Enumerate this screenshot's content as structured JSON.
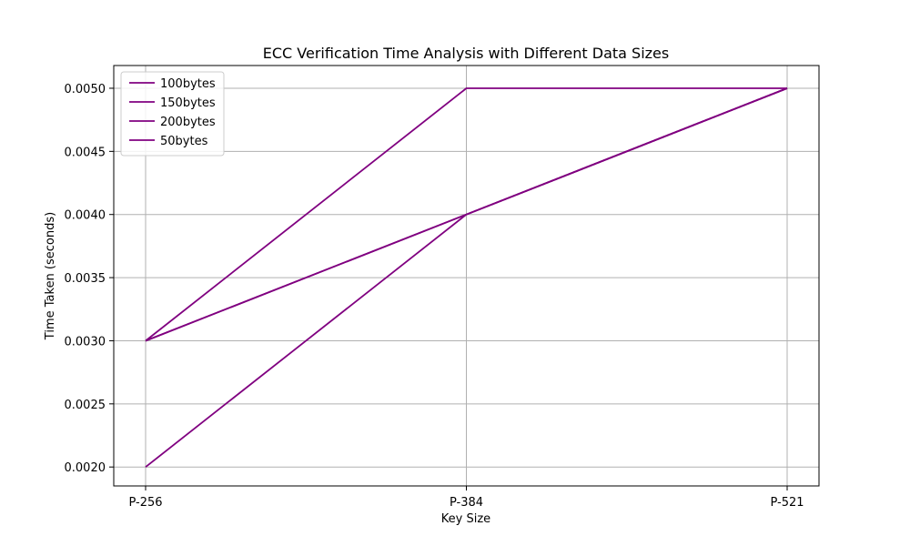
{
  "chart_data": {
    "type": "line",
    "title": "ECC Verification Time Analysis with Different Data Sizes",
    "xlabel": "Key Size",
    "ylabel": "Time Taken (seconds)",
    "categories": [
      "P-256",
      "P-384",
      "P-521"
    ],
    "series": [
      {
        "name": "100bytes",
        "values": [
          0.003,
          0.004,
          0.005
        ],
        "color": "#800080"
      },
      {
        "name": "150bytes",
        "values": [
          0.002,
          0.004,
          0.005
        ],
        "color": "#800080"
      },
      {
        "name": "200bytes",
        "values": [
          0.003,
          0.005,
          0.005
        ],
        "color": "#800080"
      },
      {
        "name": "50bytes",
        "values": [
          0.003,
          0.004,
          0.005
        ],
        "color": "#800080"
      }
    ],
    "ylim": [
      0.00185,
      0.00518
    ],
    "yticks": [
      "0.0020",
      "0.0025",
      "0.0030",
      "0.0035",
      "0.0040",
      "0.0045",
      "0.0050"
    ],
    "grid": true,
    "legend_position": "top-left"
  }
}
